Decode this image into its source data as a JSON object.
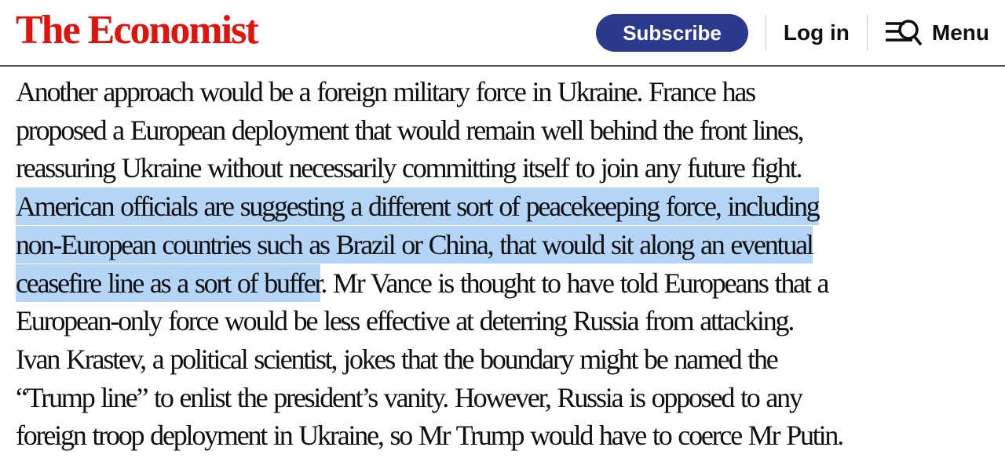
{
  "colors": {
    "brand_red": "#E3120B",
    "subscribe_navy": "#2B3A8C",
    "selection_blue": "#B5D5F6",
    "text": "#101010",
    "divider": "#C9C9C9",
    "header_border": "#575757"
  },
  "header": {
    "logo": "The Economist",
    "subscribe_label": "Subscribe",
    "login_label": "Log in",
    "menu_label": "Menu",
    "menu_icon": "hamburger-search-icon"
  },
  "article": {
    "lines": [
      {
        "segments": [
          {
            "text": "Another approach would be a foreign military force in Ukraine. France has",
            "highlighted": false
          }
        ]
      },
      {
        "segments": [
          {
            "text": "proposed a European deployment that would remain well behind the front lines,",
            "highlighted": false
          }
        ]
      },
      {
        "segments": [
          {
            "text": "reassuring Ukraine without necessarily committing itself to join any future fight.",
            "highlighted": false
          }
        ]
      },
      {
        "segments": [
          {
            "text": "American officials are suggesting a different sort of peacekeeping force, including",
            "highlighted": true
          }
        ]
      },
      {
        "segments": [
          {
            "text": "non-European countries such as Brazil or China, that would sit along an eventual",
            "highlighted": true
          }
        ]
      },
      {
        "segments": [
          {
            "text": "ceasefire line as a sort of buffer",
            "highlighted": true
          },
          {
            "text": ". Mr Vance is thought to have told Europeans that a",
            "highlighted": false
          }
        ]
      },
      {
        "segments": [
          {
            "text": "European-only force would be less effective at deterring Russia from attacking.",
            "highlighted": false
          }
        ]
      },
      {
        "segments": [
          {
            "text": "Ivan Krastev, a political scientist, jokes that the boundary might be named the",
            "highlighted": false
          }
        ]
      },
      {
        "segments": [
          {
            "text": "“Trump line” to enlist the president’s vanity. However, Russia is opposed to any",
            "highlighted": false
          }
        ]
      },
      {
        "segments": [
          {
            "text": "foreign troop deployment in Ukraine, so Mr Trump would have to coerce Mr Putin.",
            "highlighted": false
          }
        ]
      }
    ]
  }
}
